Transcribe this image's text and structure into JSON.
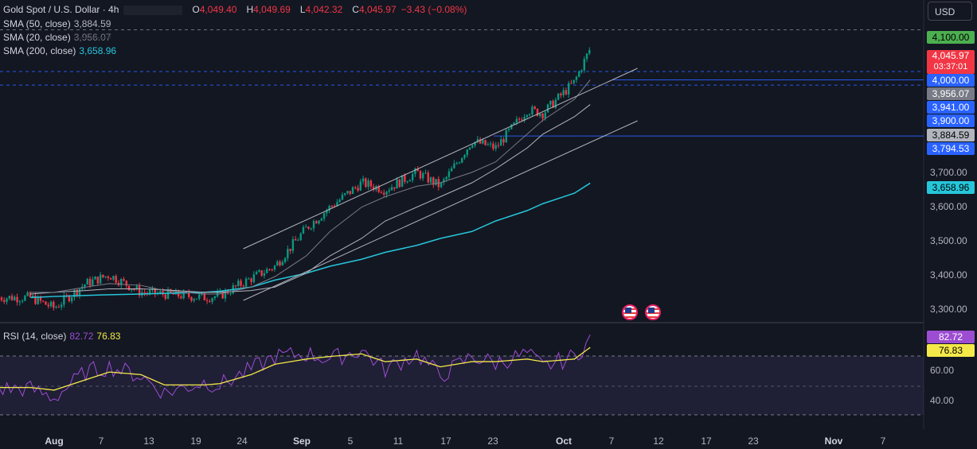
{
  "header": {
    "symbol": "Gold Spot / U.S. Dollar · 4h",
    "ohlc": {
      "o_label": "O",
      "o": "4,049.40",
      "h_label": "H",
      "h": "4,049.69",
      "l_label": "L",
      "l": "4,042.32",
      "c_label": "C",
      "c": "4,045.97",
      "change": "−3.43 (−0.08%)"
    },
    "currency": "USD"
  },
  "indicators": [
    {
      "name": "SMA (50, close)",
      "value": "3,884.59",
      "color": "#b2b5be"
    },
    {
      "name": "SMA (20, close)",
      "value": "3,956.07",
      "color": "#787b86"
    },
    {
      "name": "SMA (200, close)",
      "value": "3,658.96",
      "color": "#26c6da"
    }
  ],
  "rsi": {
    "name": "RSI (14, close)",
    "value": "82.72",
    "ma_value": "76.83",
    "color": "#9c4dd1",
    "ma_color": "#f5e94a"
  },
  "price_labels": {
    "p4100": "4,100.00",
    "last": "4,045.97",
    "countdown": "03:37:01",
    "p4000": "4,000.00",
    "sma20": "3,956.07",
    "p3941": "3,941.00",
    "p3900": "3,900.00",
    "sma50": "3,884.59",
    "p3794": "3,794.53",
    "sma200": "3,658.96",
    "rsi": "82.72",
    "rsi_ma": "76.83"
  },
  "price_axis": [
    "3,700.00",
    "3,600.00",
    "3,500.00",
    "3,400.00",
    "3,300.00"
  ],
  "rsi_axis": [
    "60.00",
    "40.00"
  ],
  "colors": {
    "up": "#089981",
    "down": "#f23645",
    "bg": "#131722",
    "blue": "#2962ff",
    "green": "#4caf50"
  },
  "chart_data": {
    "type": "line",
    "title": "Gold Spot / U.S. Dollar · 4h",
    "x_ticks": [
      "Aug",
      "7",
      "13",
      "19",
      "24",
      "Sep",
      "5",
      "11",
      "17",
      "23",
      "Oct",
      "7",
      "12",
      "17",
      "23",
      "Nov",
      "7"
    ],
    "ylim": [
      3260,
      4140
    ],
    "key_levels": [
      4100,
      4000,
      3956.07,
      3941,
      3900,
      3884.59,
      3794.53
    ],
    "price_anchors": {
      "dates": [
        "Jul 29",
        "Aug 1",
        "Aug 5",
        "Aug 8",
        "Aug 12",
        "Aug 15",
        "Aug 20",
        "Aug 22",
        "Aug 26",
        "Aug 29",
        "Sep 2",
        "Sep 5",
        "Sep 9",
        "Sep 12",
        "Sep 16",
        "Sep 19",
        "Sep 23",
        "Sep 26",
        "Sep 30",
        "Oct 2",
        "Oct 6",
        "Oct 8"
      ],
      "close": [
        3330,
        3300,
        3370,
        3395,
        3345,
        3340,
        3330,
        3335,
        3385,
        3420,
        3530,
        3590,
        3660,
        3640,
        3690,
        3650,
        3780,
        3760,
        3870,
        3860,
        3950,
        4046
      ]
    },
    "sma50": [
      3340,
      3345,
      3350,
      3355,
      3355,
      3352,
      3345,
      3345,
      3350,
      3360,
      3400,
      3450,
      3500,
      3550,
      3590,
      3620,
      3660,
      3700,
      3760,
      3800,
      3850,
      3885
    ],
    "sma20": [
      3345,
      3345,
      3360,
      3370,
      3365,
      3350,
      3340,
      3340,
      3360,
      3390,
      3450,
      3520,
      3590,
      3620,
      3650,
      3660,
      3690,
      3720,
      3800,
      3840,
      3900,
      3956
    ],
    "sma200": [
      3330,
      3333,
      3336,
      3338,
      3340,
      3342,
      3345,
      3348,
      3360,
      3380,
      3400,
      3420,
      3440,
      3460,
      3480,
      3500,
      3520,
      3550,
      3580,
      3600,
      3630,
      3659
    ],
    "channel": {
      "upper": [
        [
          24,
          3480
        ],
        [
          40,
          3670
        ],
        [
          56,
          3820
        ],
        [
          70,
          4040
        ]
      ],
      "lower": [
        [
          24,
          3320
        ],
        [
          40,
          3500
        ],
        [
          56,
          3660
        ],
        [
          70,
          3880
        ]
      ]
    },
    "rsi_values": [
      45,
      38,
      58,
      62,
      55,
      42,
      50,
      48,
      60,
      70,
      72,
      68,
      75,
      60,
      72,
      55,
      70,
      65,
      72,
      62,
      70,
      83
    ],
    "rsi_ma_values": [
      46,
      44,
      52,
      58,
      56,
      48,
      48,
      49,
      56,
      64,
      68,
      70,
      72,
      66,
      68,
      62,
      66,
      66,
      68,
      66,
      68,
      77
    ]
  }
}
